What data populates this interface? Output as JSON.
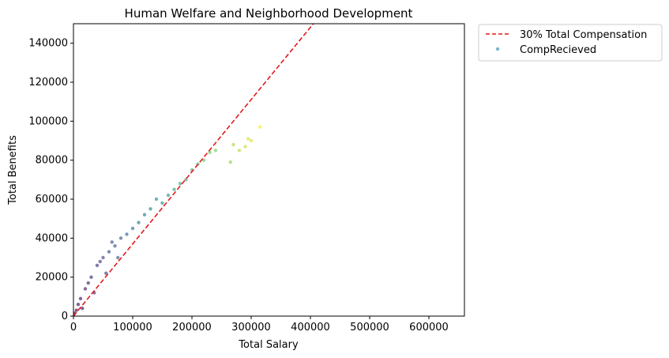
{
  "chart_data": {
    "type": "scatter",
    "title": "Human Welfare and Neighborhood Development",
    "xlabel": "Total Salary",
    "ylabel": "Total Benefits",
    "xlim": [
      0,
      660000
    ],
    "ylim": [
      0,
      150000
    ],
    "xticks": [
      0,
      100000,
      200000,
      300000,
      400000,
      500000,
      600000
    ],
    "yticks": [
      0,
      20000,
      40000,
      60000,
      80000,
      100000,
      120000,
      140000
    ],
    "grid": false,
    "legend_position": "outside-top-right",
    "colormap": "viridis",
    "series": [
      {
        "name": "30% Total Compensation",
        "kind": "line",
        "style": "dashed",
        "color": "#e41a1c",
        "x": [
          0,
          405000
        ],
        "y": [
          0,
          150000
        ]
      },
      {
        "name": "CompRecieved",
        "kind": "scatter",
        "color": "#5a9fc8",
        "color_by": "total_compensation",
        "points": [
          [
            0,
            0
          ],
          [
            2000,
            1500
          ],
          [
            5000,
            3000
          ],
          [
            8000,
            6000
          ],
          [
            12000,
            9000
          ],
          [
            15000,
            4000
          ],
          [
            20000,
            14000
          ],
          [
            25000,
            17000
          ],
          [
            30000,
            20000
          ],
          [
            35000,
            12000
          ],
          [
            40000,
            26000
          ],
          [
            45000,
            28000
          ],
          [
            50000,
            30000
          ],
          [
            55000,
            22000
          ],
          [
            60000,
            33000
          ],
          [
            65000,
            38000
          ],
          [
            70000,
            36000
          ],
          [
            75000,
            30000
          ],
          [
            80000,
            40000
          ],
          [
            90000,
            42000
          ],
          [
            100000,
            45000
          ],
          [
            110000,
            48000
          ],
          [
            120000,
            52000
          ],
          [
            130000,
            55000
          ],
          [
            140000,
            60000
          ],
          [
            150000,
            58000
          ],
          [
            160000,
            62000
          ],
          [
            170000,
            65000
          ],
          [
            180000,
            68000
          ],
          [
            190000,
            70000
          ],
          [
            200000,
            75000
          ],
          [
            210000,
            78000
          ],
          [
            220000,
            80000
          ],
          [
            230000,
            84000
          ],
          [
            240000,
            85000
          ],
          [
            265000,
            79000
          ],
          [
            270000,
            88000
          ],
          [
            280000,
            85000
          ],
          [
            290000,
            87000
          ],
          [
            295000,
            91000
          ],
          [
            300000,
            90000
          ],
          [
            315000,
            97000
          ]
        ]
      }
    ]
  }
}
